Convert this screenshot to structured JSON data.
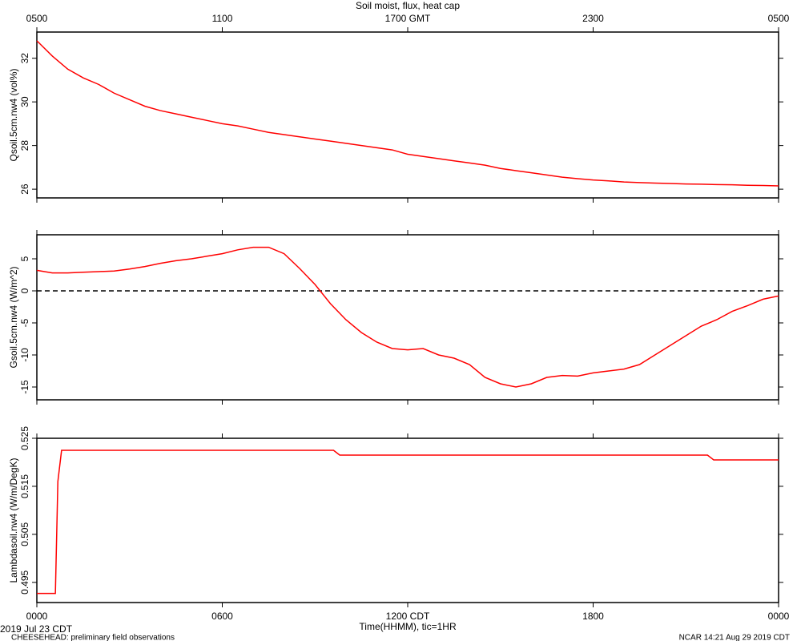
{
  "chart_data": [
    {
      "type": "line",
      "title": "Soil moist, flux, heat cap",
      "ylabel": "Qsoil.5cm.nw4 (vol%)",
      "x2ticks": [
        {
          "value": 0,
          "label": "0500"
        },
        {
          "value": 6,
          "label": "1100"
        },
        {
          "value": 12,
          "label": "1700 GMT"
        },
        {
          "value": 18,
          "label": "2300"
        },
        {
          "value": 24,
          "label": "0500"
        }
      ],
      "xlim": [
        0,
        24
      ],
      "ylim": [
        25.6,
        33.2
      ],
      "yticks": [
        26,
        28,
        30,
        32
      ],
      "color": "#ff0000",
      "x": [
        0,
        0.5,
        1,
        1.5,
        2,
        2.5,
        3,
        3.5,
        4,
        4.5,
        5,
        5.5,
        6,
        6.5,
        7,
        7.5,
        8,
        8.5,
        9,
        9.5,
        10,
        10.5,
        11,
        11.5,
        12,
        12.5,
        13,
        13.5,
        14,
        14.5,
        15,
        15.5,
        16,
        16.5,
        17,
        17.5,
        18,
        18.5,
        19,
        19.5,
        20,
        20.5,
        21,
        21.5,
        22,
        22.5,
        23,
        23.5,
        24
      ],
      "values": [
        32.8,
        32.1,
        31.5,
        31.1,
        30.8,
        30.4,
        30.1,
        29.8,
        29.6,
        29.45,
        29.3,
        29.15,
        29.0,
        28.9,
        28.75,
        28.6,
        28.5,
        28.4,
        28.3,
        28.2,
        28.1,
        28.0,
        27.9,
        27.8,
        27.6,
        27.5,
        27.4,
        27.3,
        27.2,
        27.1,
        26.95,
        26.85,
        26.75,
        26.65,
        26.55,
        26.48,
        26.42,
        26.38,
        26.33,
        26.3,
        26.28,
        26.26,
        26.24,
        26.23,
        26.21,
        26.2,
        26.18,
        26.17,
        26.15
      ]
    },
    {
      "type": "line",
      "ylabel": "Gsoil.5cm.nw4 (W/m^2)",
      "xlim": [
        0,
        24
      ],
      "ylim": [
        -17,
        8.75
      ],
      "yticks": [
        -15,
        -10,
        -5,
        0,
        5
      ],
      "hline": 0,
      "color": "#ff0000",
      "x": [
        0,
        0.5,
        1,
        1.5,
        2,
        2.5,
        3,
        3.5,
        4,
        4.5,
        5,
        5.5,
        6,
        6.5,
        7,
        7.5,
        8,
        8.5,
        9,
        9.5,
        10,
        10.5,
        11,
        11.5,
        12,
        12.5,
        13,
        13.5,
        14,
        14.5,
        15,
        15.5,
        16,
        16.5,
        17,
        17.5,
        18,
        18.5,
        19,
        19.5,
        20,
        20.5,
        21,
        21.5,
        22,
        22.5,
        23,
        23.5,
        24
      ],
      "values": [
        3.2,
        2.8,
        2.8,
        2.9,
        3.0,
        3.1,
        3.4,
        3.8,
        4.3,
        4.7,
        5.0,
        5.4,
        5.8,
        6.4,
        6.8,
        6.8,
        5.8,
        3.5,
        1.0,
        -2,
        -4.5,
        -6.5,
        -8,
        -9,
        -9.2,
        -9,
        -10,
        -10.5,
        -11.5,
        -13.5,
        -14.5,
        -15,
        -14.5,
        -13.5,
        -13.2,
        -13.3,
        -12.8,
        -12.5,
        -12.2,
        -11.5,
        -10,
        -8.5,
        -7,
        -5.5,
        -4.5,
        -3.2,
        -2.3,
        -1.3,
        -0.8
      ]
    },
    {
      "type": "line",
      "ylabel": "Lambdasoil.nw4 (W/m/DegK)",
      "xlabel": "Time(HHMM), tic=1HR",
      "date_label": "2019 Jul 23 CDT",
      "xlim": [
        0,
        24
      ],
      "xticks": [
        {
          "value": 0,
          "label": "0000"
        },
        {
          "value": 6,
          "label": "0600"
        },
        {
          "value": 12,
          "label": "1200 CDT"
        },
        {
          "value": 18,
          "label": "1800"
        },
        {
          "value": 24,
          "label": "0000"
        }
      ],
      "ylim": [
        0.4908,
        0.525
      ],
      "yticks": [
        0.495,
        0.505,
        0.515,
        0.525
      ],
      "color": "#ff0000",
      "x": [
        0,
        0.6,
        0.68,
        0.8,
        9.6,
        9.8,
        21.7,
        21.9,
        24
      ],
      "values": [
        0.4927,
        0.4927,
        0.516,
        0.5225,
        0.5225,
        0.5215,
        0.5215,
        0.5205,
        0.5205
      ]
    }
  ],
  "footer": {
    "left": "CHEESEHEAD: preliminary field observations",
    "right": "NCAR 14:21 Aug 29 2019 CDT"
  }
}
